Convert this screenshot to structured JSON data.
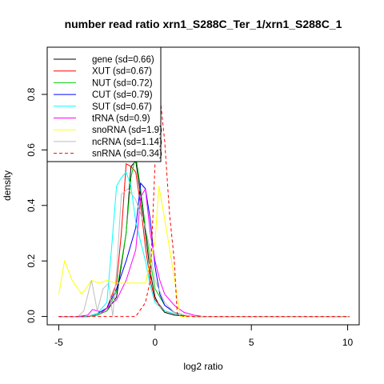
{
  "chart_data": {
    "type": "line",
    "title": "number read ratio xrn1_S288C_Ter_1/xrn1_S288C_1",
    "xlabel": "log2 ratio",
    "ylabel": "density",
    "xlim": [
      -5.6,
      10.6
    ],
    "ylim": [
      -0.03,
      0.97
    ],
    "x_ticks": [
      -5,
      0,
      5,
      10
    ],
    "x_tick_labels": [
      "-5",
      "0",
      "5",
      "10"
    ],
    "y_ticks": [
      0.0,
      0.2,
      0.4,
      0.6,
      0.8
    ],
    "y_tick_labels": [
      "0.0",
      "0.2",
      "0.4",
      "0.6",
      "0.8"
    ],
    "grid": false,
    "legend_position": "top-left",
    "series": [
      {
        "name": "gene (sd=0.66)",
        "color": "#000000",
        "dash": "solid",
        "x": [
          -5,
          -4.5,
          -4,
          -3.5,
          -3,
          -2.5,
          -2,
          -1.5,
          -1.25,
          -1,
          -0.75,
          -0.5,
          -0.25,
          0,
          0.25,
          0.5,
          1,
          1.5,
          2,
          2.5,
          10.1
        ],
        "y": [
          0,
          0,
          0,
          0,
          0.005,
          0.02,
          0.07,
          0.3,
          0.54,
          0.56,
          0.44,
          0.3,
          0.16,
          0.07,
          0.035,
          0.015,
          0.005,
          0.002,
          0,
          0,
          0
        ]
      },
      {
        "name": "XUT (sd=0.67)",
        "color": "#ff0000",
        "dash": "solid",
        "x": [
          -5,
          -4.5,
          -4,
          -3.5,
          -3,
          -2.5,
          -2,
          -1.75,
          -1.5,
          -1.25,
          -1,
          -0.75,
          -0.5,
          -0.25,
          0,
          0.5,
          1,
          1.5,
          2,
          10.1
        ],
        "y": [
          0,
          0,
          0,
          0,
          0.01,
          0.03,
          0.12,
          0.3,
          0.55,
          0.54,
          0.52,
          0.4,
          0.25,
          0.13,
          0.06,
          0.02,
          0.01,
          0.005,
          0,
          0
        ]
      },
      {
        "name": "NUT (sd=0.72)",
        "color": "#00cd00",
        "dash": "solid",
        "x": [
          -5,
          -4.5,
          -4,
          -3.5,
          -3,
          -2.5,
          -2,
          -1.5,
          -1.25,
          -1,
          -0.75,
          -0.5,
          -0.25,
          0,
          0.5,
          1,
          1.5,
          2,
          10.1
        ],
        "y": [
          0,
          0,
          0,
          0,
          0.005,
          0.02,
          0.09,
          0.3,
          0.5,
          0.58,
          0.46,
          0.32,
          0.2,
          0.1,
          0.04,
          0.015,
          0.005,
          0,
          0
        ]
      },
      {
        "name": "CUT (sd=0.79)",
        "color": "#0000ff",
        "dash": "solid",
        "x": [
          -5,
          -4.5,
          -4,
          -3.5,
          -3,
          -2.5,
          -2,
          -1.5,
          -1,
          -0.75,
          -0.5,
          -0.25,
          0,
          0.25,
          0.5,
          1,
          1.5,
          2,
          10.1
        ],
        "y": [
          0,
          0,
          0,
          0,
          0.01,
          0.03,
          0.1,
          0.2,
          0.32,
          0.48,
          0.46,
          0.35,
          0.18,
          0.08,
          0.04,
          0.015,
          0.005,
          0,
          0
        ]
      },
      {
        "name": "SUT (sd=0.67)",
        "color": "#00ffff",
        "dash": "solid",
        "x": [
          -5,
          -4.5,
          -4,
          -3.5,
          -3,
          -2.5,
          -2.25,
          -2,
          -1.75,
          -1.5,
          -1.25,
          -1,
          -0.5,
          -0.25,
          0,
          0.5,
          1,
          1.5,
          2,
          10.1
        ],
        "y": [
          0,
          0,
          0,
          0,
          0.01,
          0.05,
          0.25,
          0.47,
          0.5,
          0.52,
          0.47,
          0.34,
          0.2,
          0.11,
          0.05,
          0.02,
          0.01,
          0.005,
          0,
          0
        ]
      },
      {
        "name": "tRNA (sd=0.9)",
        "color": "#ff00ff",
        "dash": "solid",
        "x": [
          -5,
          -4,
          -3.5,
          -3.25,
          -3,
          -2.75,
          -2.5,
          -2,
          -1.5,
          -1,
          -0.75,
          -0.5,
          -0.25,
          0,
          0.25,
          0.5,
          1,
          1.5,
          2,
          2.5,
          10.1
        ],
        "y": [
          0,
          0,
          0.005,
          0.025,
          0.02,
          0.015,
          0.03,
          0.06,
          0.13,
          0.24,
          0.43,
          0.46,
          0.3,
          0.2,
          0.13,
          0.08,
          0.04,
          0.015,
          0.005,
          0,
          0
        ]
      },
      {
        "name": "snoRNA (sd=1.9)",
        "color": "#ffff00",
        "dash": "solid",
        "x": [
          -5,
          -4.7,
          -4.3,
          -3.8,
          -3.3,
          -2.9,
          -2.5,
          -2,
          -1.5,
          -1,
          -0.5,
          -0.25,
          0,
          0.2,
          0.5,
          1,
          1.3,
          2,
          10.1
        ],
        "y": [
          0.08,
          0.2,
          0.13,
          0.08,
          0.13,
          0.12,
          0.13,
          0.12,
          0.12,
          0.12,
          0.12,
          0.2,
          0.27,
          0.47,
          0.35,
          0.14,
          0,
          0,
          0
        ]
      },
      {
        "name": "ncRNA (sd=1.14)",
        "color": "#bebebe",
        "dash": "solid",
        "x": [
          -5,
          -4.5,
          -4,
          -3.7,
          -3.3,
          -3,
          -2.7,
          -2.4,
          -2.2,
          -2,
          -1.75,
          -1.4,
          -1,
          -0.5,
          -0.25,
          0,
          0.5,
          1,
          1.5,
          2,
          10.1
        ],
        "y": [
          0,
          0,
          0,
          0.02,
          0.13,
          0.02,
          0.1,
          0.12,
          0,
          0.16,
          0.44,
          0.46,
          0.42,
          0.32,
          0.24,
          0.13,
          0.05,
          0.015,
          0.005,
          0,
          0
        ]
      },
      {
        "name": "snRNA (sd=0.34)",
        "color": "#ff0000",
        "dash": "dashed",
        "x": [
          -5,
          -1,
          -0.5,
          -0.25,
          0,
          0.1,
          0.25,
          0.5,
          0.75,
          1,
          1.15,
          1.5,
          2,
          10.1
        ],
        "y": [
          0,
          0,
          0.05,
          0.13,
          0.55,
          0.91,
          0.8,
          0.63,
          0.37,
          0.2,
          0.01,
          0,
          0,
          0
        ]
      }
    ]
  }
}
